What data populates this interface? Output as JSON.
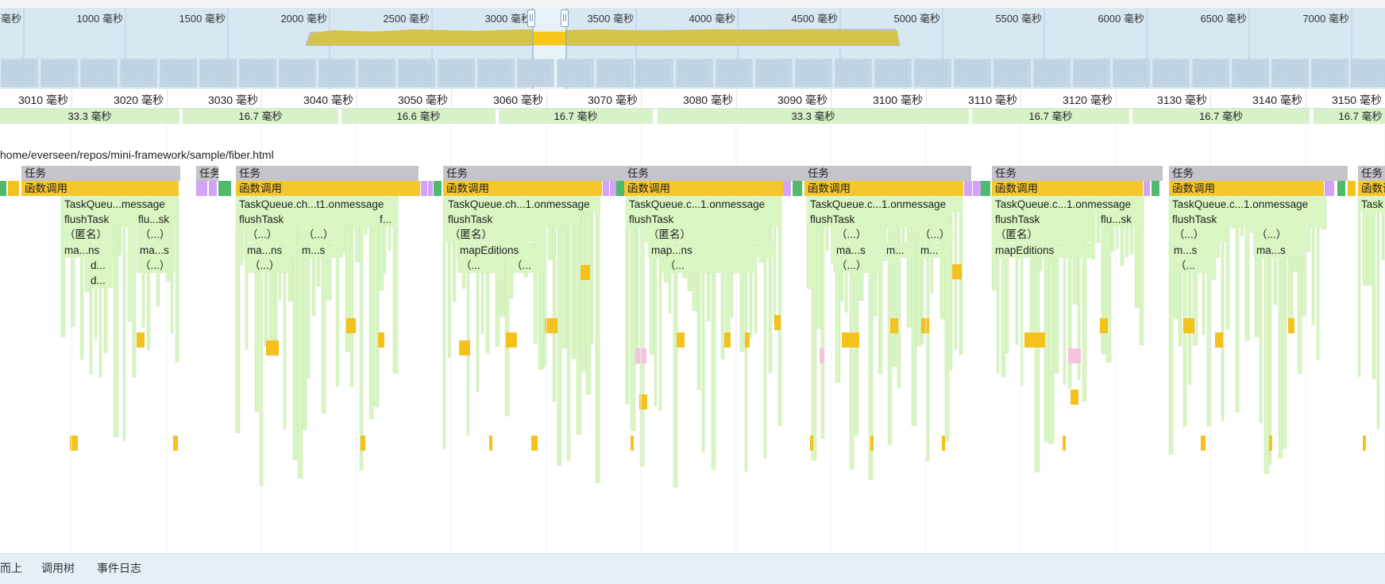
{
  "overview": {
    "tick_suffix": "毫秒",
    "ticks": [
      {
        "label": "毫秒"
      },
      {
        "label": "1000 毫秒"
      },
      {
        "label": "1500 毫秒"
      },
      {
        "label": "2000 毫秒"
      },
      {
        "label": "2500 毫秒"
      },
      {
        "label": "3000 毫秒"
      },
      {
        "label": "3500 毫秒"
      },
      {
        "label": "4000 毫秒"
      },
      {
        "label": "4500 毫秒"
      },
      {
        "label": "5000 毫秒"
      },
      {
        "label": "5500 毫秒"
      },
      {
        "label": "6000 毫秒"
      },
      {
        "label": "6500 毫秒"
      },
      {
        "label": "7000 毫秒"
      }
    ],
    "handle_left_glyph": "||",
    "handle_right_glyph": "||",
    "colors": {
      "cpu_fill": "#d4c24a",
      "cpu_edge": "#b9b9c9",
      "selection": "#f7c71c",
      "window_bg": "#d7e8f3"
    }
  },
  "ruler": {
    "ticks": [
      "3010 毫秒",
      "3020 毫秒",
      "3030 毫秒",
      "3040 毫秒",
      "3050 毫秒",
      "3060 毫秒",
      "3070 毫秒",
      "3080 毫秒",
      "3090 毫秒",
      "3100 毫秒",
      "3110 毫秒",
      "3120 毫秒",
      "3130 毫秒",
      "3140 毫秒",
      "3150 毫秒"
    ]
  },
  "frames": [
    "33.3 毫秒",
    "16.7 毫秒",
    "16.6 毫秒",
    "16.7 毫秒",
    "33.3 毫秒",
    "16.7 毫秒",
    "16.7 毫秒",
    "16.7 毫秒"
  ],
  "track": {
    "url": "home/everseen/repos/mini-framework/sample/fiber.html"
  },
  "flame": {
    "task_label": "任务",
    "call_label": "函数调用",
    "labels": {
      "tq1": "TaskQueu...message",
      "tq2": "TaskQueue.ch...t1.onmessage",
      "tq3": "TaskQueue.ch...1.onmessage",
      "tq4": "TaskQueue.c...1.onmessage",
      "tq5": "TaskQueue.c...1.onmessage",
      "tq6": "TaskQueue.c...1.onmessage",
      "tq7": "TaskQueue.c...1.onmessage",
      "tq8": "Task",
      "flush": "flushTask",
      "flush_sk": "flu...sk",
      "f": "f...",
      "anon": "（匿名）",
      "ell": "（...）",
      "mans": "ma...ns",
      "mas": "ma...s",
      "ms": "m...s",
      "mdots": "m...",
      "mapEditions": "mapEditions",
      "mapns": "map...ns",
      "ellopen": "（...",
      "d": "d...",
      "ms_tail": "m...s"
    },
    "colors": {
      "task": "#c4c5c9",
      "call": "#f6c62d",
      "js": "#d8f5c2",
      "purple": "#d3a3f5",
      "green": "#4dbb6b",
      "yellow": "#f4c11d",
      "pink": "#f5c4dc"
    }
  },
  "bottom_tabs": [
    {
      "label": "而上"
    },
    {
      "label": "调用树"
    },
    {
      "label": "事件日志"
    }
  ]
}
